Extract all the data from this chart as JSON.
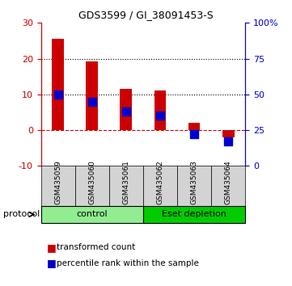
{
  "title": "GDS3599 / GI_38091453-S",
  "samples": [
    "GSM435059",
    "GSM435060",
    "GSM435061",
    "GSM435062",
    "GSM435063",
    "GSM435064"
  ],
  "red_values": [
    25.5,
    19.2,
    11.5,
    11.0,
    2.0,
    -2.0
  ],
  "blue_values_pct": [
    50,
    45,
    38,
    35,
    22,
    17
  ],
  "ylim_left": [
    -10,
    30
  ],
  "ylim_right": [
    0,
    100
  ],
  "hline_y": [
    20,
    10
  ],
  "zero_line_y": 0,
  "groups": [
    {
      "label": "control",
      "samples": [
        0,
        1,
        2
      ],
      "color": "#90EE90"
    },
    {
      "label": "Eset depletion",
      "samples": [
        3,
        4,
        5
      ],
      "color": "#00CC00"
    }
  ],
  "bar_color": "#CC0000",
  "dot_color": "#0000CC",
  "bar_width": 0.35,
  "dot_size": 60,
  "tick_label_color_left": "#CC0000",
  "tick_label_color_right": "#0000CC",
  "axis_color_left": "#CC0000",
  "axis_color_right": "#0000CC",
  "plot_bg_color": "#ffffff",
  "sample_label_bg": "#d3d3d3",
  "group_label_control_bg": "#90EE90",
  "group_label_eset_bg": "#00CC00",
  "legend_red_label": "transformed count",
  "legend_blue_label": "percentile rank within the sample",
  "protocol_label": "protocol",
  "right_yticks": [
    0,
    25,
    50,
    75,
    100
  ],
  "right_yticklabels": [
    "0",
    "25",
    "50",
    "75",
    "100%"
  ],
  "left_yticks": [
    -10,
    0,
    10,
    20,
    30
  ],
  "left_yticklabels": [
    "-10",
    "0",
    "10",
    "20",
    "30"
  ]
}
